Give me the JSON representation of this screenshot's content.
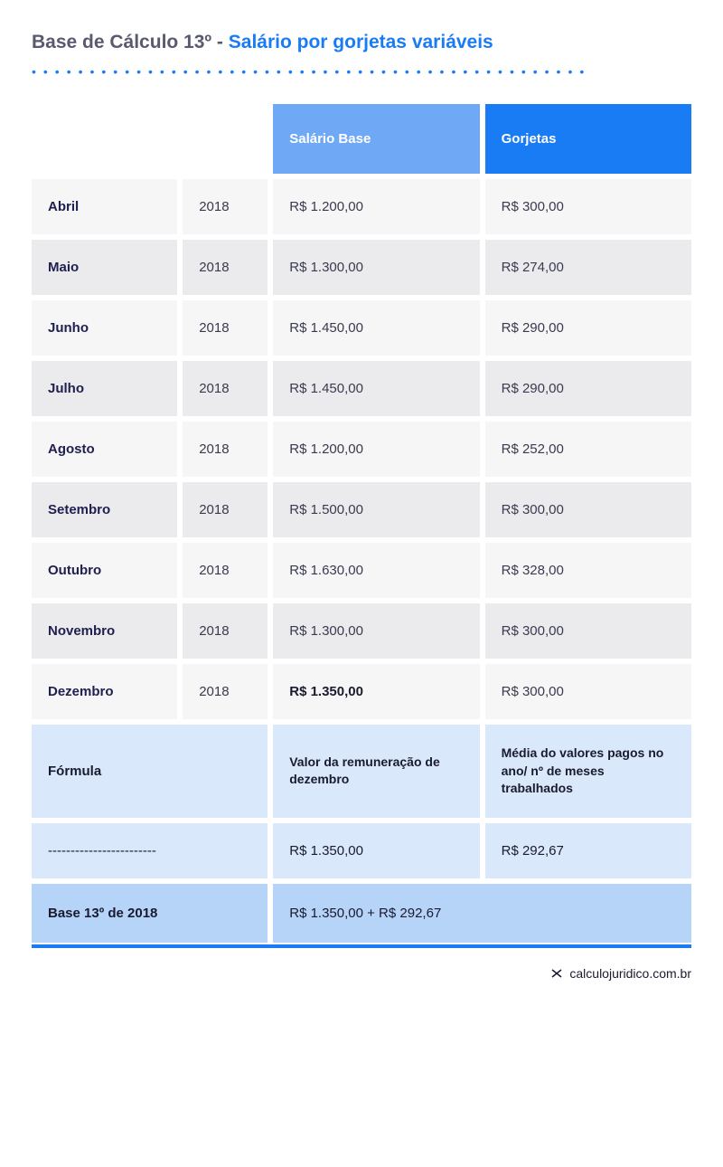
{
  "title": {
    "prefix": "Base de Cálculo 13º - ",
    "suffix": "Salário por gorjetas variáveis"
  },
  "colors": {
    "accent": "#1a7cf5",
    "light_blue": "#6fa8f5",
    "formula_bg": "#d9e9fb",
    "base_bg": "#b5d4f7",
    "odd_bg": "#f6f6f7",
    "even_bg": "#ebebed",
    "text_dark": "#202050",
    "text_medium": "#3a3a50"
  },
  "headers": {
    "salario": "Salário Base",
    "gorjetas": "Gorjetas"
  },
  "rows": [
    {
      "month": "Abril",
      "year": "2018",
      "salario": "R$ 1.200,00",
      "gorjetas": "R$ 300,00",
      "bold": false
    },
    {
      "month": "Maio",
      "year": "2018",
      "salario": "R$ 1.300,00",
      "gorjetas": "R$ 274,00",
      "bold": false
    },
    {
      "month": "Junho",
      "year": "2018",
      "salario": "R$ 1.450,00",
      "gorjetas": "R$ 290,00",
      "bold": false
    },
    {
      "month": "Julho",
      "year": "2018",
      "salario": "R$ 1.450,00",
      "gorjetas": "R$ 290,00",
      "bold": false
    },
    {
      "month": "Agosto",
      "year": "2018",
      "salario": "R$ 1.200,00",
      "gorjetas": "R$ 252,00",
      "bold": false
    },
    {
      "month": "Setembro",
      "year": "2018",
      "salario": "R$ 1.500,00",
      "gorjetas": "R$ 300,00",
      "bold": false
    },
    {
      "month": "Outubro",
      "year": "2018",
      "salario": "R$ 1.630,00",
      "gorjetas": "R$ 328,00",
      "bold": false
    },
    {
      "month": "Novembro",
      "year": "2018",
      "salario": "R$ 1.300,00",
      "gorjetas": "R$ 300,00",
      "bold": false
    },
    {
      "month": "Dezembro",
      "year": "2018",
      "salario": "R$ 1.350,00",
      "gorjetas": "R$ 300,00",
      "bold": true
    }
  ],
  "formula": {
    "label": "Fórmula",
    "salario_text": "Valor da remuneração de dezembro",
    "gorjetas_text": "Média do valores pagos no ano/ nº de meses trabalhados"
  },
  "dash_row": {
    "label": "------------------------",
    "salario": "R$ 1.350,00",
    "gorjetas": "R$ 292,67"
  },
  "base_row": {
    "label": "Base 13º de 2018",
    "value": "R$ 1.350,00 + R$ 292,67"
  },
  "footer": "calculojuridico.com.br"
}
